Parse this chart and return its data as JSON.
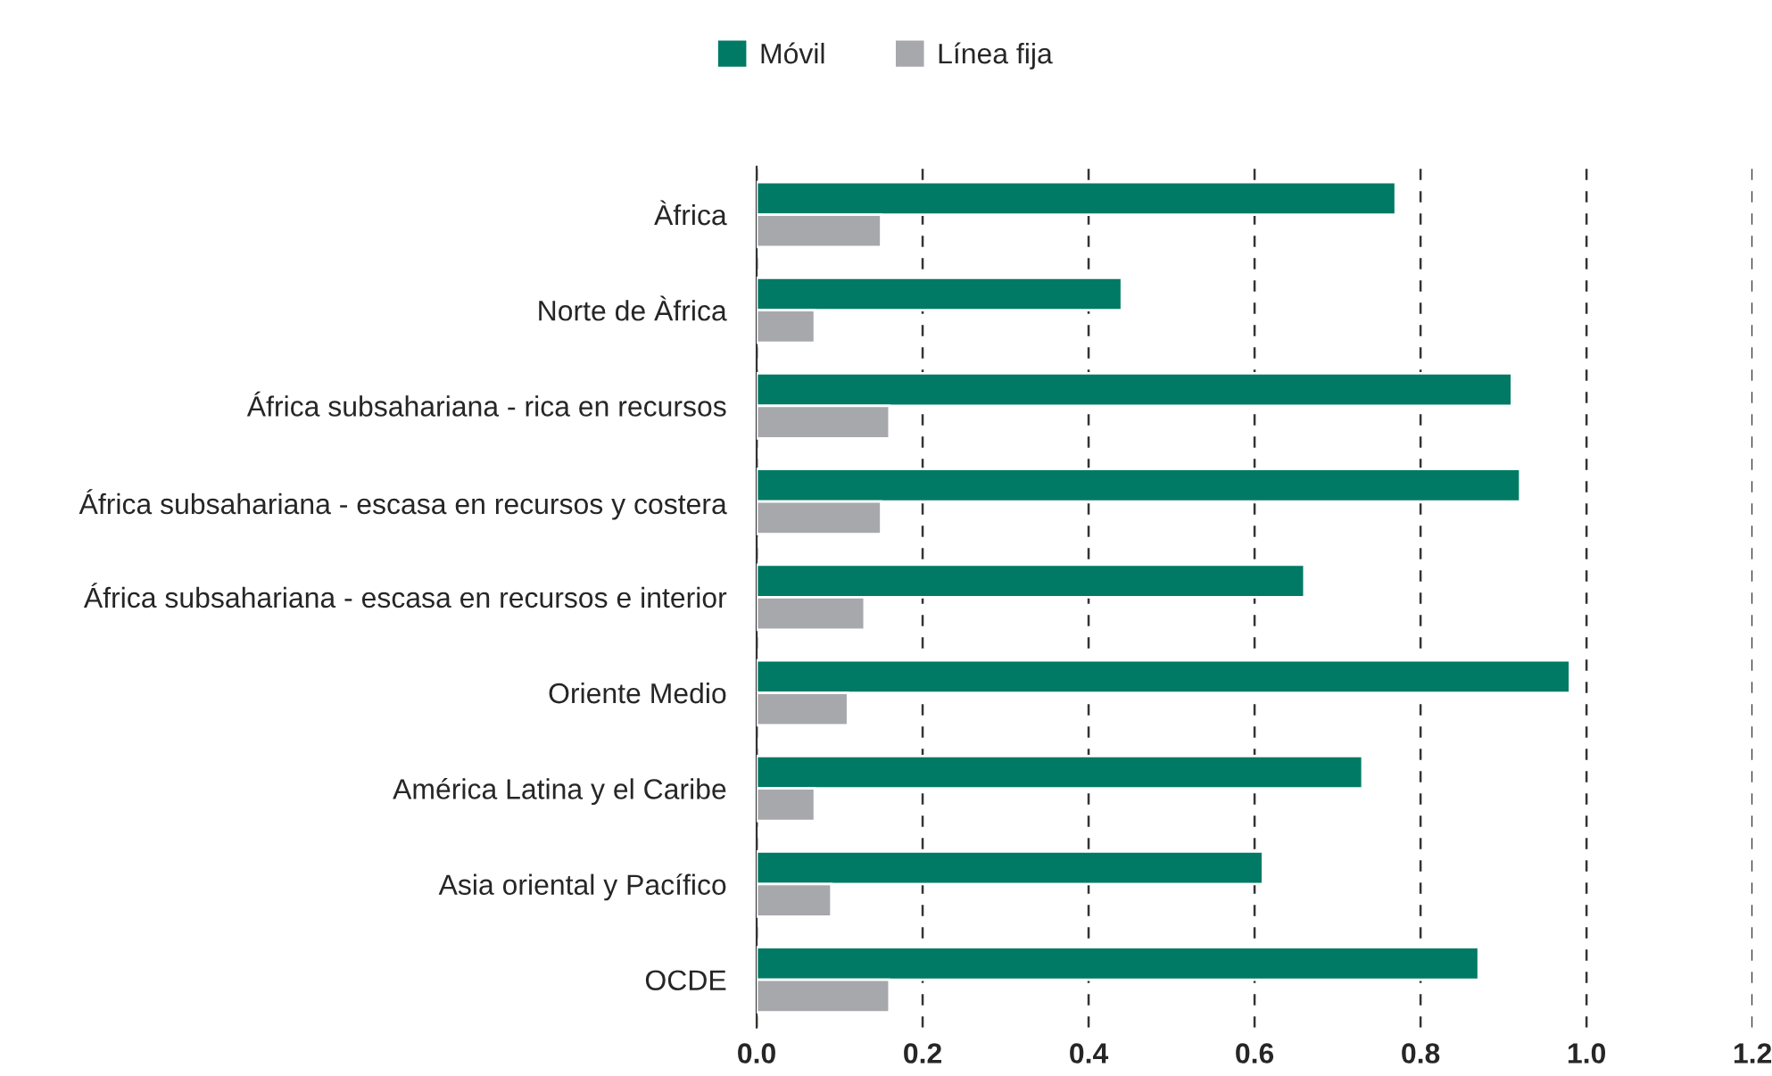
{
  "chart_data": {
    "type": "bar",
    "orientation": "horizontal",
    "categories": [
      "Àfrica",
      "Norte de Àfrica",
      "África subsahariana - rica en recursos",
      "África subsahariana - escasa en recursos y costera",
      "África subsahariana - escasa en recursos e interior",
      "Oriente Medio",
      "América Latina y el Caribe",
      "Asia oriental y Pacífico",
      "OCDE"
    ],
    "series": [
      {
        "name": "Móvil",
        "color": "#007a64",
        "values": [
          0.77,
          0.44,
          0.91,
          0.92,
          0.66,
          0.98,
          0.73,
          0.61,
          0.87
        ]
      },
      {
        "name": "Línea fija",
        "color": "#a7a8ac",
        "values": [
          0.15,
          0.07,
          0.16,
          0.15,
          0.13,
          0.11,
          0.07,
          0.09,
          0.16
        ]
      }
    ],
    "xlim": [
      0,
      1.2
    ],
    "xticks": [
      {
        "value": 0,
        "label": "0.0"
      },
      0.2,
      0.4,
      0.6,
      0.8,
      {
        "value": 1.0,
        "label": "1.0"
      },
      1.2
    ],
    "grid": "x",
    "legend": "top"
  }
}
